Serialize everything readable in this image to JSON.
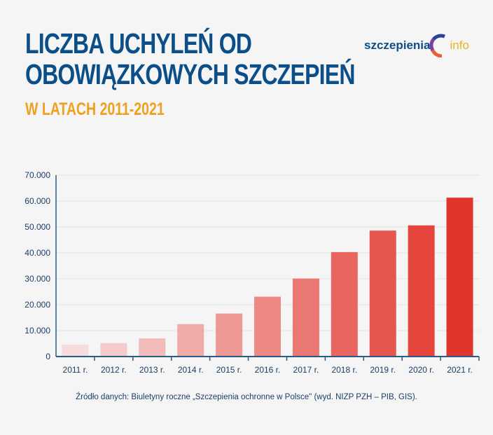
{
  "header": {
    "title_line1": "LICZBA UCHYLEŃ OD",
    "title_line2": "OBOWIĄZKOWYCH SZCZEPIEŃ",
    "subtitle": "W LATACH 2011-2021"
  },
  "logo": {
    "text_main": "szczepienia",
    "text_accent": "info"
  },
  "colors": {
    "title": "#0c4f88",
    "subtitle": "#f0a020",
    "bar_light": "#f6dcdc",
    "bar_dark": "#e3342b",
    "axis": "#2a5c8a"
  },
  "chart_data": {
    "type": "bar",
    "title": "LICZBA UCHYLEŃ OD OBOWIĄZKOWYCH SZCZEPIEŃ",
    "subtitle": "W LATACH 2011-2021",
    "categories": [
      "2011 r.",
      "2012 r.",
      "2013 r.",
      "2014 r.",
      "2015 r.",
      "2016 r.",
      "2017 r.",
      "2018 r.",
      "2019 r.",
      "2020 r.",
      "2021 r."
    ],
    "values": [
      4600,
      5200,
      7000,
      12500,
      16600,
      23100,
      30100,
      40300,
      48600,
      50600,
      61300
    ],
    "ylim": [
      0,
      70000
    ],
    "yticks": [
      0,
      10000,
      20000,
      30000,
      40000,
      50000,
      60000,
      70000
    ],
    "ytick_labels": [
      "0",
      "10.000",
      "20.000",
      "30.000",
      "40.000",
      "50.000",
      "60.000",
      "70.000"
    ],
    "xlabel": "",
    "ylabel": "",
    "grid": true,
    "legend": "none"
  },
  "footer": {
    "source": "Źródło danych: Biuletyny roczne „Szczepienia ochronne w Polsce\" (wyd. NIZP PZH – PIB, GIS)."
  }
}
